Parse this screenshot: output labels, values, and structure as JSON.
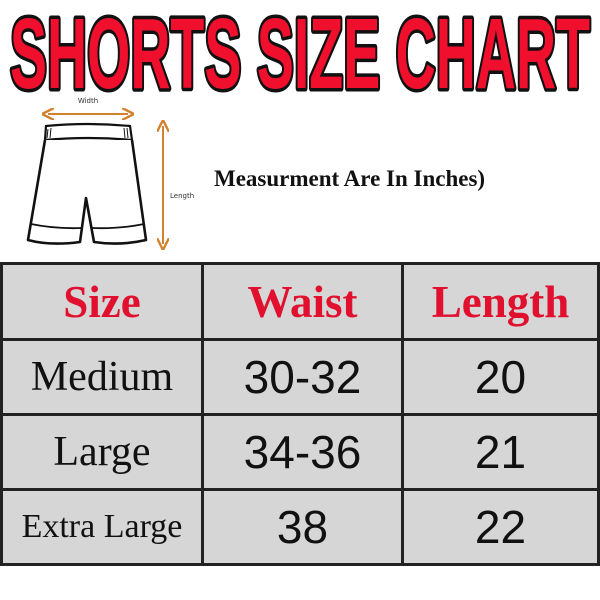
{
  "title": "SHORTS SIZE CHART",
  "colors": {
    "title_fill": "#f0102e",
    "title_outline": "#111111",
    "header_text": "#e0102e",
    "table_bg": "#d6d6d6",
    "arrow": "#d2822e"
  },
  "diagram": {
    "width_label": "Width",
    "length_label": "Length",
    "icon": "shorts-outline-icon"
  },
  "note": "Measurment Are In Inches)",
  "table": {
    "headers": [
      "Size",
      "Waist",
      "Length"
    ],
    "rows": [
      [
        "Medium",
        "30-32",
        "20"
      ],
      [
        "Large",
        "34-36",
        "21"
      ],
      [
        "Extra Large",
        "38",
        "22"
      ]
    ]
  }
}
